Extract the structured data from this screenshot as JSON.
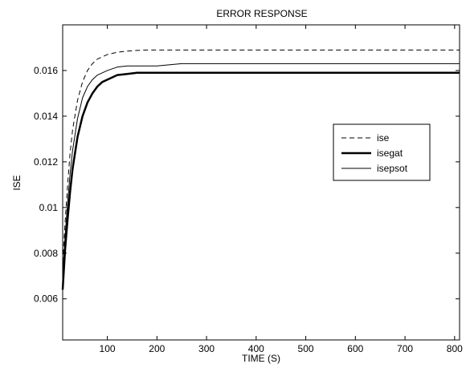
{
  "chart_data": {
    "type": "line",
    "title": "ERROR RESPONSE",
    "xlabel": "TIME (S)",
    "ylabel": "ISE",
    "xlim": [
      10,
      810
    ],
    "ylim": [
      0.0042,
      0.018
    ],
    "xticks": [
      100,
      200,
      300,
      400,
      500,
      600,
      700,
      800
    ],
    "yticks": [
      0.006,
      0.008,
      0.01,
      0.012,
      0.014,
      0.016
    ],
    "ytick_labels": [
      "0.006",
      "0.008",
      "0.01",
      "0.012",
      "0.014",
      "0.016"
    ],
    "grid": false,
    "legend_position": "right",
    "series": [
      {
        "name": "ise",
        "style": "dashed",
        "color": "#000000",
        "x": [
          10,
          15,
          20,
          25,
          30,
          40,
          50,
          60,
          70,
          80,
          90,
          100,
          120,
          140,
          160,
          180,
          200,
          250,
          300,
          350,
          400,
          500,
          600,
          700,
          810
        ],
        "y": [
          0.0076,
          0.0094,
          0.011,
          0.0124,
          0.0134,
          0.0147,
          0.0155,
          0.016,
          0.0163,
          0.0165,
          0.0166,
          0.0167,
          0.0168,
          0.01685,
          0.01688,
          0.0169,
          0.0169,
          0.0169,
          0.0169,
          0.0169,
          0.0169,
          0.0169,
          0.0169,
          0.0169,
          0.0169
        ]
      },
      {
        "name": "isegat",
        "style": "thick",
        "color": "#000000",
        "x": [
          10,
          15,
          20,
          25,
          30,
          40,
          50,
          60,
          70,
          80,
          90,
          100,
          120,
          140,
          160,
          180,
          200,
          250,
          300,
          350,
          400,
          500,
          600,
          700,
          810
        ],
        "y": [
          0.0064,
          0.0082,
          0.0095,
          0.0107,
          0.0117,
          0.0131,
          0.014,
          0.0146,
          0.015,
          0.0153,
          0.0155,
          0.0156,
          0.0158,
          0.01585,
          0.0159,
          0.0159,
          0.0159,
          0.0159,
          0.0159,
          0.0159,
          0.0159,
          0.0159,
          0.0159,
          0.0159,
          0.0159
        ]
      },
      {
        "name": "isepsot",
        "style": "thin",
        "color": "#000000",
        "x": [
          10,
          15,
          20,
          25,
          30,
          40,
          50,
          60,
          70,
          80,
          90,
          100,
          120,
          140,
          160,
          180,
          200,
          250,
          300,
          350,
          400,
          500,
          600,
          700,
          810
        ],
        "y": [
          0.007,
          0.0088,
          0.0102,
          0.0115,
          0.0125,
          0.0139,
          0.0148,
          0.0153,
          0.0156,
          0.0158,
          0.0159,
          0.016,
          0.01615,
          0.0162,
          0.0162,
          0.0162,
          0.0162,
          0.0163,
          0.0163,
          0.0163,
          0.0163,
          0.0163,
          0.0163,
          0.0163,
          0.0163
        ]
      }
    ]
  }
}
